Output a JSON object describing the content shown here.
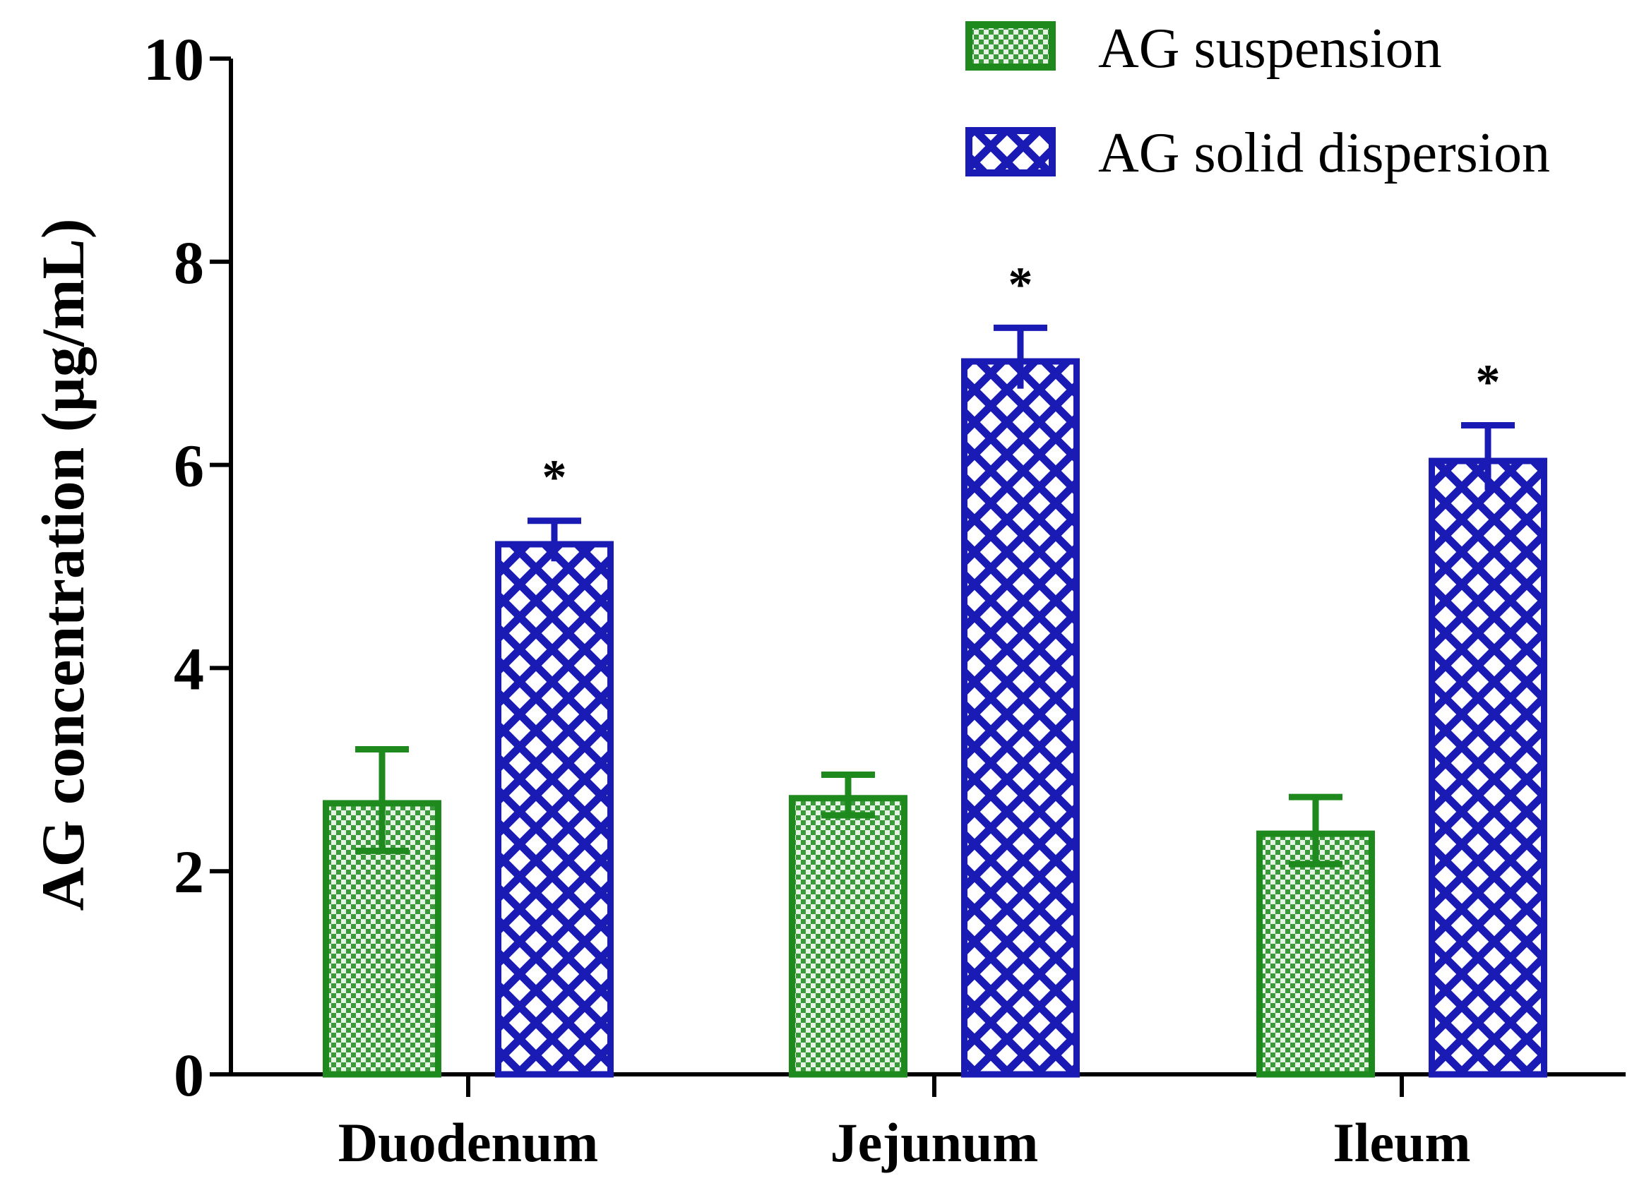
{
  "chart_data": {
    "type": "bar",
    "title": "",
    "xlabel": "",
    "ylabel": "AG concentration (µg/mL)",
    "ylim": [
      0,
      10
    ],
    "yticks": [
      0,
      2,
      4,
      6,
      8,
      10
    ],
    "grid": false,
    "legend_position": "top-right",
    "categories": [
      "Duodenum",
      "Jejunum",
      "Ileum"
    ],
    "series": [
      {
        "name": "AG suspension",
        "color": "#1e8a1e",
        "pattern": "fine-checker",
        "values": [
          2.7,
          2.75,
          2.4
        ],
        "errors": [
          0.5,
          0.2,
          0.33
        ],
        "significance": [
          "",
          "",
          ""
        ]
      },
      {
        "name": "AG solid dispersion",
        "color": "#1a1ab4",
        "pattern": "diamond-crosshatch",
        "values": [
          5.25,
          7.05,
          6.07
        ],
        "errors": [
          0.2,
          0.3,
          0.32
        ],
        "significance": [
          "*",
          "*",
          "*"
        ]
      }
    ]
  }
}
